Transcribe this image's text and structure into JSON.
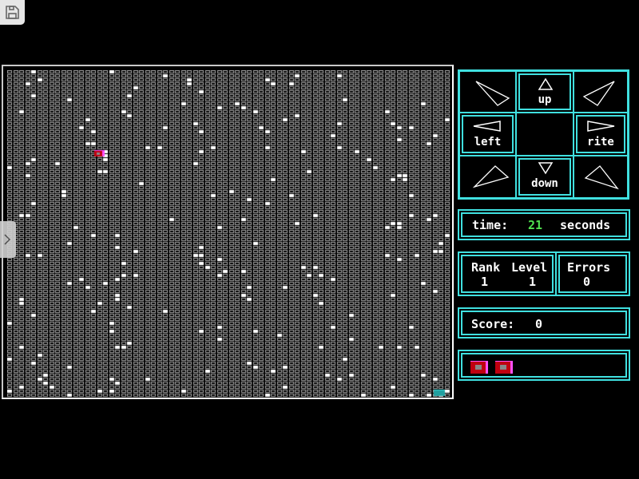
{
  "toolbar": {
    "save_icon": "floppy-disk-icon"
  },
  "board": {
    "player_color": "#c00010",
    "player_border": "#ff50ff",
    "target_color": "#20a0a0",
    "cell_color": "#a8a8a8",
    "dot_color": "#ffffff",
    "cols": 74,
    "rows": 82,
    "player": {
      "col": 15,
      "row": 20
    },
    "target": {
      "col": 73,
      "row": 80
    }
  },
  "controls": {
    "up": "up",
    "down": "down",
    "left": "left",
    "rite": "rite"
  },
  "time": {
    "label": "time:",
    "value": "21",
    "unit": "seconds",
    "value_color": "#50e050"
  },
  "stats": {
    "rank_label": "Rank",
    "rank": "1",
    "level_label": "Level",
    "level": "1",
    "errors_label": "Errors",
    "errors": "0"
  },
  "score": {
    "label": "Score:",
    "value": "0"
  },
  "lives": {
    "count": 2
  },
  "colors": {
    "accent": "#40e0e0"
  }
}
